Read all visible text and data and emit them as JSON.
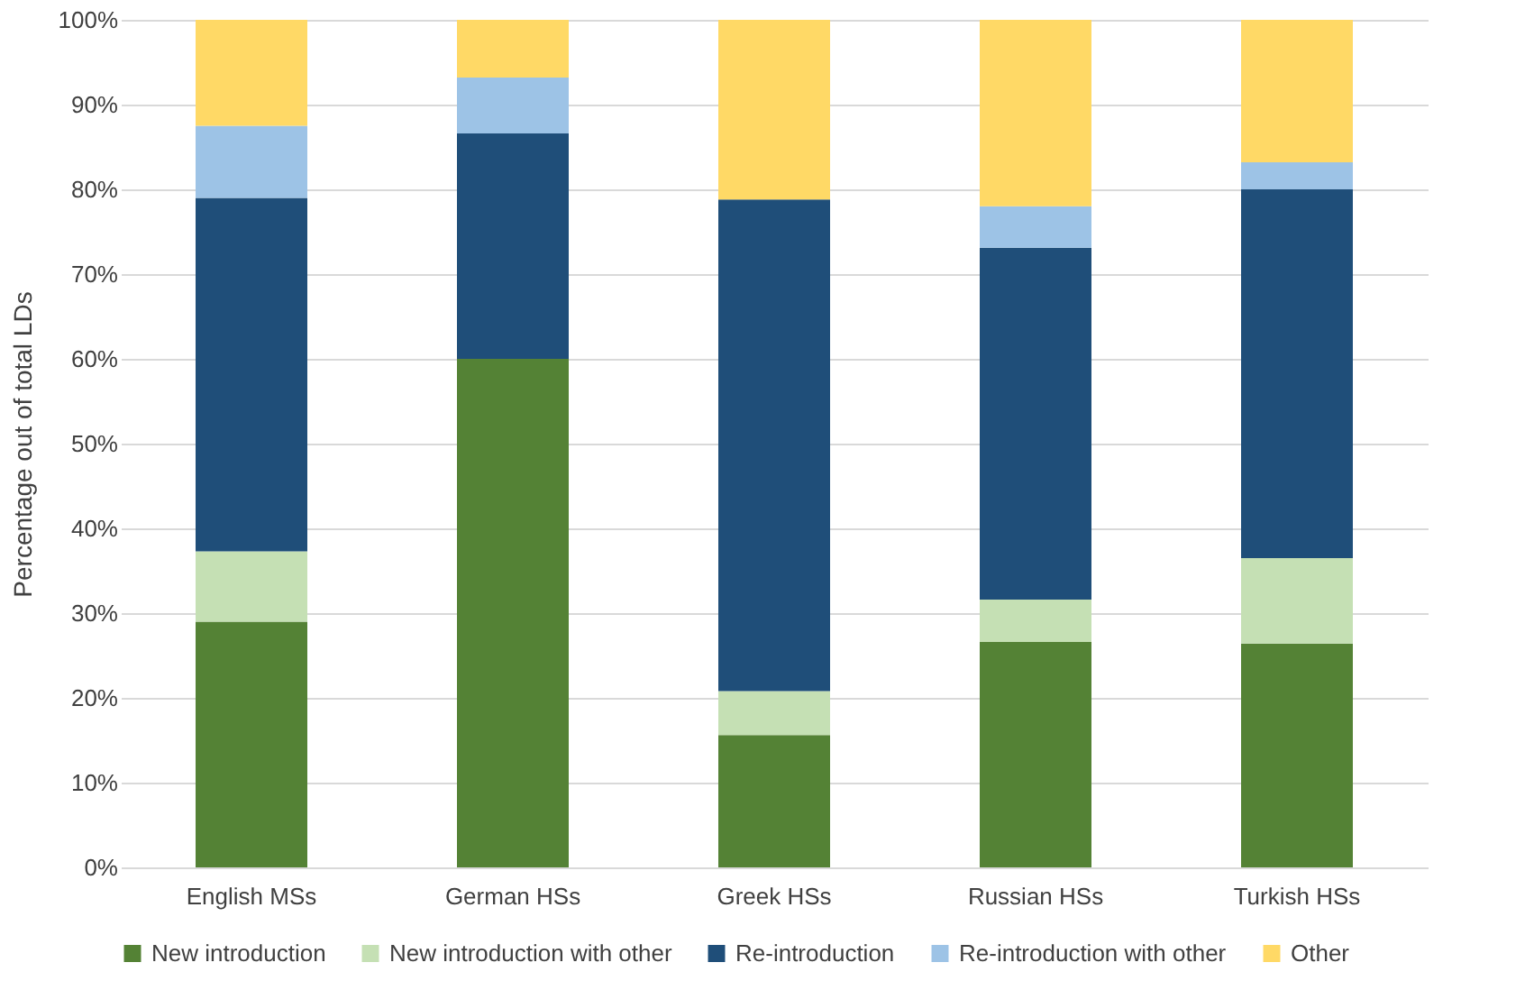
{
  "chart_data": {
    "type": "bar",
    "stacked": true,
    "ylabel": "Percentage out of total LDs",
    "categories": [
      "English MSs",
      "German HSs",
      "Greek HSs",
      "Russian HSs",
      "Turkish HSs"
    ],
    "series": [
      {
        "name": "New introduction",
        "color": "#548235",
        "values": [
          29,
          60,
          15.6,
          26.6,
          26.4
        ]
      },
      {
        "name": "New introduction with other",
        "color": "#c5e0b4",
        "values": [
          8.3,
          0,
          5.2,
          5.0,
          10.1
        ]
      },
      {
        "name": "Re-introduction",
        "color": "#1f4e79",
        "values": [
          41.7,
          26.6,
          58.0,
          41.5,
          43.5
        ]
      },
      {
        "name": "Re-introduction with other",
        "color": "#9dc3e6",
        "values": [
          8.5,
          6.6,
          0,
          4.9,
          3.2
        ]
      },
      {
        "name": "Other",
        "color": "#ffd966",
        "values": [
          12.5,
          6.8,
          21.2,
          22.0,
          16.8
        ]
      }
    ],
    "ylim": [
      0,
      100
    ],
    "yticks": [
      {
        "value": 0,
        "label": "0%"
      },
      {
        "value": 10,
        "label": "10%"
      },
      {
        "value": 20,
        "label": "20%"
      },
      {
        "value": 30,
        "label": "30%"
      },
      {
        "value": 40,
        "label": "40%"
      },
      {
        "value": 50,
        "label": "50%"
      },
      {
        "value": 60,
        "label": "60%"
      },
      {
        "value": 70,
        "label": "70%"
      },
      {
        "value": 80,
        "label": "80%"
      },
      {
        "value": 90,
        "label": "90%"
      },
      {
        "value": 100,
        "label": "100%"
      }
    ],
    "grid": "y",
    "legend": "bottom"
  }
}
